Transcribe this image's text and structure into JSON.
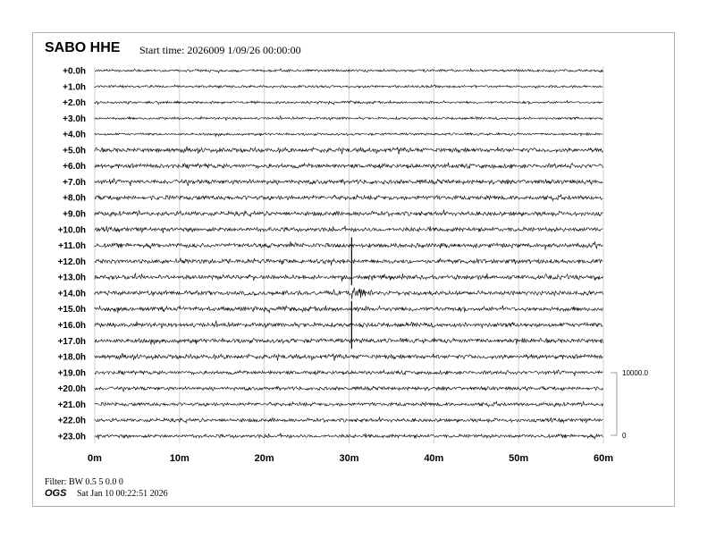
{
  "header": {
    "station": "SABO HHE",
    "start_time": "Start time: 2026009   1/09/26 00:00:00"
  },
  "footer": {
    "filter": "Filter: BW 0.5 5 0.0 0",
    "org": "OGS",
    "timestamp": "Sat Jan 10 00:22:51 2026"
  },
  "chart_data": {
    "type": "line",
    "subtype": "helicorder",
    "row_labels": [
      "+0.0h",
      "+1.0h",
      "+2.0h",
      "+3.0h",
      "+4.0h",
      "+5.0h",
      "+6.0h",
      "+7.0h",
      "+8.0h",
      "+9.0h",
      "+10.0h",
      "+11.0h",
      "+12.0h",
      "+13.0h",
      "+14.0h",
      "+15.0h",
      "+16.0h",
      "+17.0h",
      "+18.0h",
      "+19.0h",
      "+20.0h",
      "+21.0h",
      "+22.0h",
      "+23.0h"
    ],
    "x_ticks": [
      "0m",
      "10m",
      "20m",
      "30m",
      "40m",
      "50m",
      "60m"
    ],
    "xlim": [
      0,
      60
    ],
    "grid": true,
    "scale_bar": {
      "top_label": "10000.0",
      "bottom_label": "0"
    },
    "event": {
      "row": "+14.0h",
      "minute": 30.3
    },
    "trace_color": "#000000",
    "grid_color": "#d0d0d0"
  }
}
